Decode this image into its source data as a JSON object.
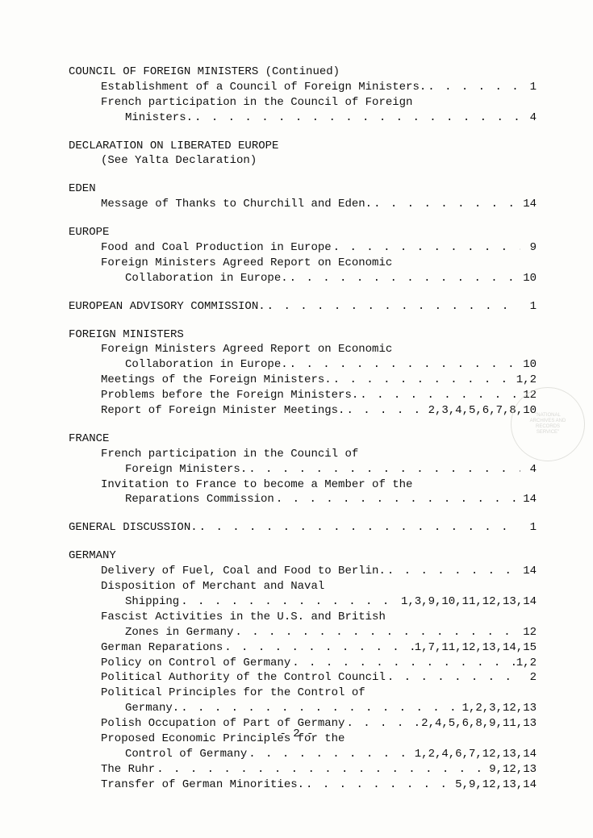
{
  "sections": [
    {
      "title": "COUNCIL OF FOREIGN MINISTERS (Continued)",
      "entries": [
        {
          "label": "Establishment of a Council of Foreign Ministers.",
          "page": "1"
        },
        {
          "label": "French participation in the Council of Foreign",
          "cont": "Ministers.",
          "page": "4"
        }
      ]
    },
    {
      "title": "DECLARATION ON LIBERATED EUROPE",
      "entries": [
        {
          "label": "(See Yalta Declaration)",
          "nopagenum": true
        }
      ]
    },
    {
      "title": "EDEN",
      "entries": [
        {
          "label": "Message of Thanks to Churchill and Eden.",
          "page": "14"
        }
      ]
    },
    {
      "title": "EUROPE",
      "entries": [
        {
          "label": "Food and Coal Production in Europe",
          "page": "9"
        },
        {
          "label": "Foreign Ministers Agreed Report on Economic",
          "cont": "Collaboration in Europe.",
          "page": "10"
        }
      ]
    },
    {
      "title": "EUROPEAN ADVISORY COMMISSION.",
      "inline_page": "1",
      "entries": []
    },
    {
      "title": "FOREIGN MINISTERS",
      "entries": [
        {
          "label": "Foreign Ministers Agreed Report on Economic",
          "cont": "Collaboration in Europe.",
          "page": "10"
        },
        {
          "label": "Meetings of the Foreign Ministers.",
          "page": "1,2"
        },
        {
          "label": "Problems before the Foreign Ministers.",
          "page": "12"
        },
        {
          "label": "Report of Foreign Minister Meetings.",
          "page": "2,3,4,5,6,7,8,10"
        }
      ]
    },
    {
      "title": "FRANCE",
      "entries": [
        {
          "label": "French participation in the Council of",
          "cont": "Foreign Ministers.",
          "page": "4"
        },
        {
          "label": "Invitation to France to become a Member of the",
          "cont": "Reparations Commission",
          "page": "14"
        }
      ]
    },
    {
      "title": "GENERAL DISCUSSION.",
      "inline_page": "1",
      "entries": []
    },
    {
      "title": "GERMANY",
      "entries": [
        {
          "label": "Delivery of Fuel, Coal and Food to Berlin.",
          "page": "14"
        },
        {
          "label": "Disposition of Merchant and Naval",
          "cont": "Shipping",
          "page": "1,3,9,10,11,12,13,14"
        },
        {
          "label": "Fascist Activities in the U.S. and British",
          "cont": "Zones in Germany",
          "page": "12"
        },
        {
          "label": "German Reparations",
          "page": "1,7,11,12,13,14,15"
        },
        {
          "label": "Policy on Control of Germany",
          "page": "1,2"
        },
        {
          "label": "Political Authority of the Control Council",
          "page": "2"
        },
        {
          "label": "Political Principles for the Control of",
          "cont": "Germany.",
          "page": "1,2,3,12,13"
        },
        {
          "label": "Polish Occupation of Part of Germany",
          "page": "2,4,5,6,8,9,11,13"
        },
        {
          "label": "Proposed Economic Principles for the",
          "cont": "Control of Germany",
          "page": "1,2,4,6,7,12,13,14"
        },
        {
          "label": "The Ruhr",
          "page": "9,12,13"
        },
        {
          "label": "Transfer of German Minorities.",
          "page": "5,9,12,13,14"
        }
      ]
    }
  ],
  "footer": "- 2 -",
  "stamp": {
    "line1": "\"NATIONAL",
    "line2": "ARCHIVES AND",
    "line3": "RECORDS",
    "line4": "SERVICE\""
  },
  "dots_fill": ". . . . . . . . . . . . . . . . . . . . . . . . . . . . . . . . . . ."
}
